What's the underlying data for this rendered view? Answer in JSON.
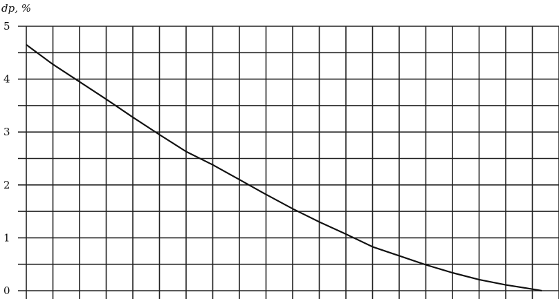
{
  "chart_data": {
    "type": "line",
    "title": "",
    "ylabel": "dp, %",
    "xlabel": "",
    "ylim": [
      0,
      5
    ],
    "xlim": [
      0,
      20
    ],
    "y_ticks": [
      "0",
      "1",
      "2",
      "3",
      "4",
      "5"
    ],
    "y_minor_step": 0.5,
    "x_grid_step": 1,
    "grid": true,
    "line_color": "#111111",
    "grid_color": "#222222",
    "series": [
      {
        "x": [
          0,
          1,
          2,
          3,
          4,
          5,
          6,
          7,
          8,
          9,
          10,
          11,
          12,
          13,
          14,
          15,
          16,
          17,
          18,
          19,
          19.35
        ],
        "y": [
          4.65,
          4.28,
          3.95,
          3.62,
          3.28,
          2.95,
          2.63,
          2.38,
          2.1,
          1.82,
          1.55,
          1.3,
          1.07,
          0.83,
          0.66,
          0.49,
          0.34,
          0.21,
          0.11,
          0.03,
          0.0
        ]
      }
    ]
  }
}
